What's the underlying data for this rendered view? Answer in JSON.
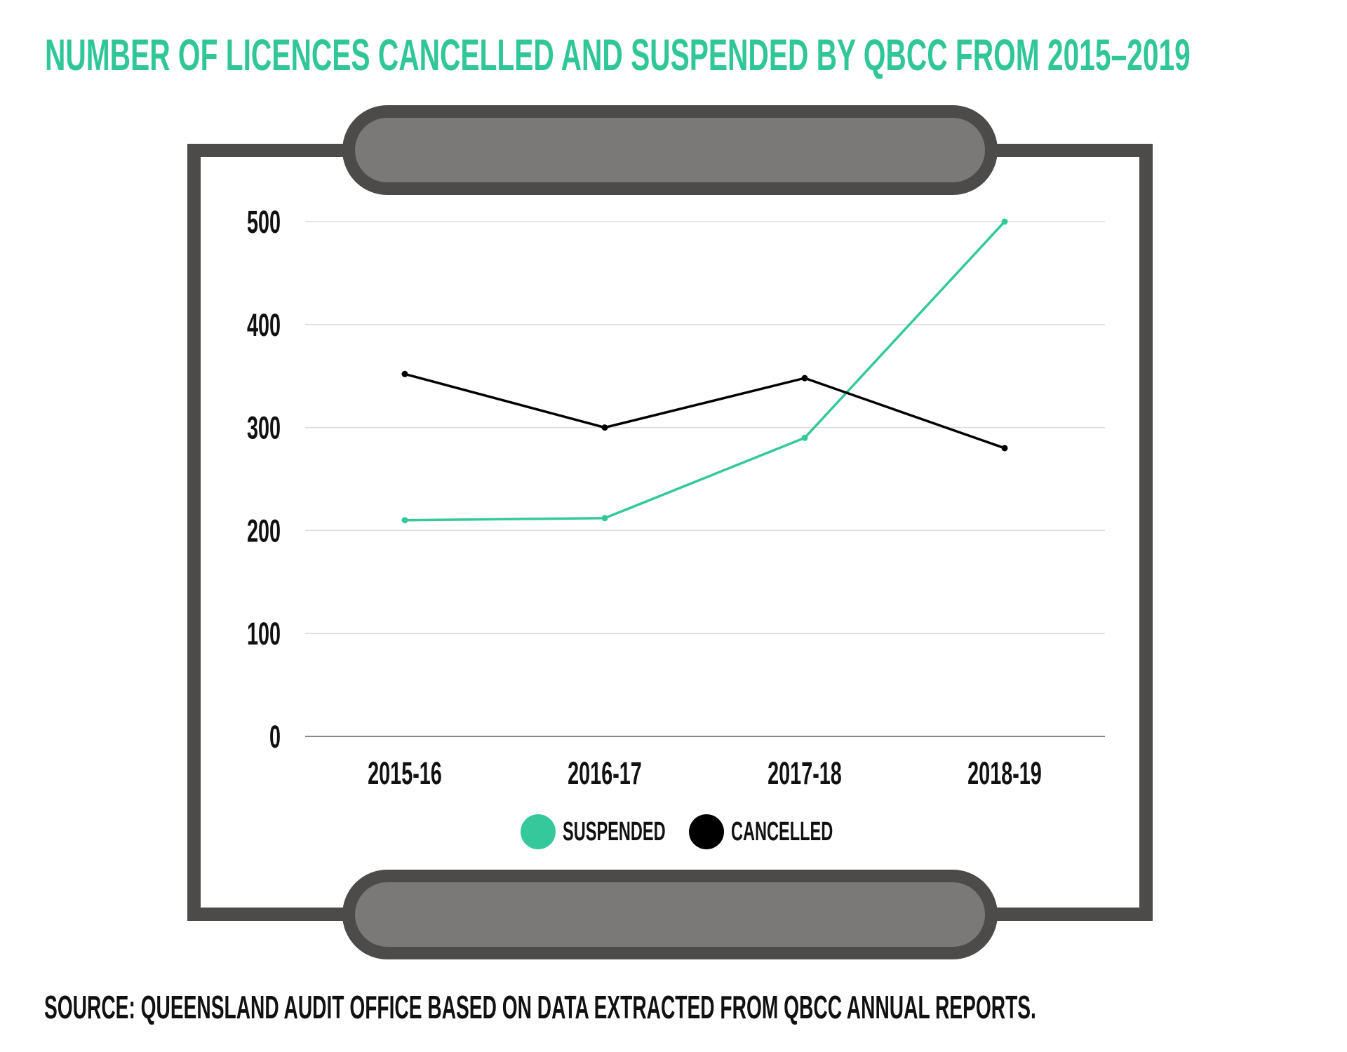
{
  "title": "NUMBER OF LICENCES CANCELLED AND SUSPENDED BY QBCC FROM 2015–2019",
  "source": "SOURCE: QUEENSLAND AUDIT OFFICE BASED ON DATA EXTRACTED FROM QBCC ANNUAL REPORTS.",
  "colors": {
    "title": "#30c698",
    "suspended": "#34c89b",
    "cancelled": "#000000",
    "frame": "#4c4b49",
    "pill_fill": "#7a7977",
    "gridline": "#dddddd",
    "baseline": "#888888"
  },
  "chart_data": {
    "type": "line",
    "title": "NUMBER OF LICENCES CANCELLED AND SUSPENDED BY QBCC FROM 2015–2019",
    "xlabel": "",
    "ylabel": "",
    "categories": [
      "2015-16",
      "2016-17",
      "2017-18",
      "2018-19"
    ],
    "series": [
      {
        "name": "SUSPENDED",
        "color": "#34c89b",
        "values": [
          210,
          212,
          290,
          500
        ]
      },
      {
        "name": "CANCELLED",
        "color": "#000000",
        "values": [
          352,
          300,
          348,
          280
        ]
      }
    ],
    "ylim": [
      0,
      500
    ],
    "yticks": [
      0,
      100,
      200,
      300,
      400,
      500
    ],
    "ytick_labels": [
      "0",
      "100",
      "200",
      "300",
      "400",
      "500"
    ],
    "grid": true,
    "legend": {
      "placement": "bottom-center",
      "entries": [
        "SUSPENDED",
        "CANCELLED"
      ]
    }
  }
}
